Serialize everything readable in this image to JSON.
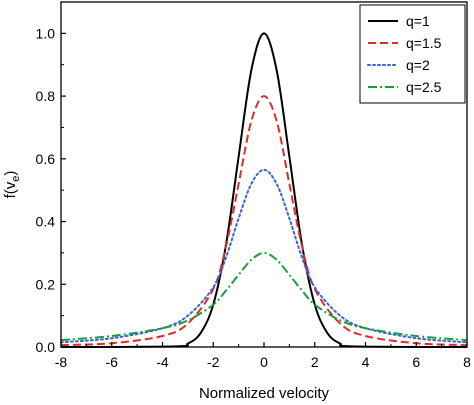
{
  "chart_data": {
    "type": "line",
    "title": "",
    "xlabel": "Normalized velocity",
    "ylabel": "f(v_e)",
    "ylabel_main": "f(v",
    "ylabel_sub": "e",
    "ylabel_close": ")",
    "xlim": [
      -8,
      8
    ],
    "ylim": [
      0,
      1.1
    ],
    "x_ticks": [
      -8,
      -6,
      -4,
      -2,
      0,
      2,
      4,
      6,
      8
    ],
    "x_tick_labels": [
      "-8",
      "-6",
      "-4",
      "-2",
      "0",
      "2",
      "4",
      "6",
      "8"
    ],
    "y_ticks": [
      0.0,
      0.2,
      0.4,
      0.6,
      0.8,
      1.0
    ],
    "y_tick_labels": [
      "0.0",
      "0.2",
      "0.4",
      "0.6",
      "0.8",
      "1.0"
    ],
    "grid": false,
    "legend_position": "top-right",
    "series": [
      {
        "name": "q=1",
        "color": "#000000",
        "style": "solid",
        "x": [
          -8,
          -3.5,
          -3,
          -2.5,
          -2,
          -1.5,
          -1,
          -0.5,
          0,
          0.5,
          1,
          1.5,
          2,
          2.5,
          3,
          3.5,
          8
        ],
        "y": [
          0.0,
          0.002,
          0.011,
          0.044,
          0.135,
          0.325,
          0.607,
          0.882,
          1.0,
          0.882,
          0.607,
          0.325,
          0.135,
          0.044,
          0.011,
          0.002,
          0.0
        ]
      },
      {
        "name": "q=1.5",
        "color": "#e32b2b",
        "style": "dashed",
        "x": [
          -8,
          -6,
          -4,
          -3,
          -2,
          -1.5,
          -1,
          -0.5,
          0,
          0.5,
          1,
          1.5,
          2,
          3,
          4,
          6,
          8
        ],
        "y": [
          0.006,
          0.012,
          0.035,
          0.075,
          0.185,
          0.32,
          0.52,
          0.72,
          0.8,
          0.72,
          0.52,
          0.32,
          0.185,
          0.075,
          0.035,
          0.012,
          0.006
        ]
      },
      {
        "name": "q=2",
        "color": "#3a63d8",
        "style": "dotted",
        "x": [
          -8,
          -6,
          -4,
          -3,
          -2,
          -1.5,
          -1,
          -0.5,
          0,
          0.5,
          1,
          1.5,
          2,
          3,
          4,
          6,
          8
        ],
        "y": [
          0.015,
          0.028,
          0.06,
          0.1,
          0.19,
          0.285,
          0.41,
          0.52,
          0.565,
          0.52,
          0.41,
          0.285,
          0.19,
          0.1,
          0.06,
          0.028,
          0.015
        ]
      },
      {
        "name": "q=2.5",
        "color": "#1a9e3a",
        "style": "dashdot",
        "x": [
          -8,
          -6,
          -4,
          -3,
          -2,
          -1.5,
          -1,
          -0.5,
          0,
          0.5,
          1,
          1.5,
          2,
          3,
          4,
          6,
          8
        ],
        "y": [
          0.022,
          0.035,
          0.06,
          0.085,
          0.135,
          0.18,
          0.23,
          0.278,
          0.3,
          0.278,
          0.23,
          0.18,
          0.135,
          0.085,
          0.06,
          0.035,
          0.022
        ]
      }
    ]
  }
}
